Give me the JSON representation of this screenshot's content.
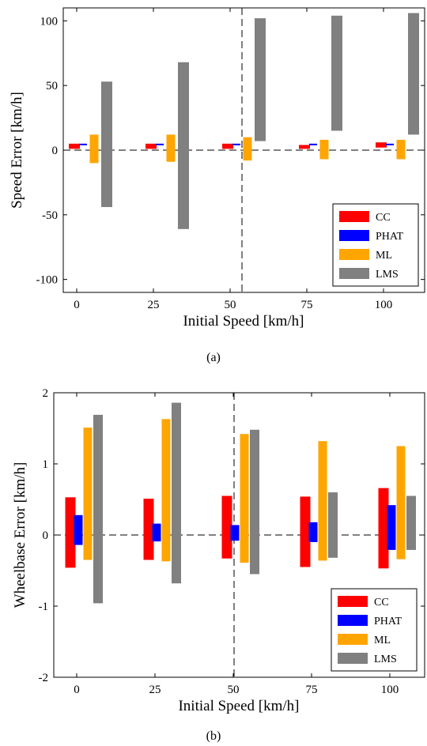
{
  "chart_data": [
    {
      "type": "bar",
      "subtype": "floating-range",
      "caption": "(a)",
      "xlabel": "Initial Speed [km/h]",
      "ylabel": "Speed Error [km/h]",
      "categories": [
        "0",
        "25",
        "50",
        "75",
        "100"
      ],
      "ylim": [
        -110,
        110
      ],
      "yticks": [
        "-100",
        "-50",
        "0",
        "50",
        "100"
      ],
      "grid": false,
      "legend_position": "bottom-right",
      "reference_lines": [
        "y = 0 (dashed)",
        "x = 50 (dashed)"
      ],
      "series": [
        {
          "name": "CC",
          "color": "#ff0000",
          "ranges": [
            [
              1,
              5
            ],
            [
              1,
              5
            ],
            [
              1,
              5
            ],
            [
              1,
              4
            ],
            [
              2,
              6
            ]
          ]
        },
        {
          "name": "PHAT",
          "color": "#0000ff",
          "ranges": [
            [
              4,
              5
            ],
            [
              4,
              5
            ],
            [
              4,
              5
            ],
            [
              4,
              5
            ],
            [
              4,
              5
            ]
          ]
        },
        {
          "name": "ML",
          "color": "#ffa500",
          "ranges": [
            [
              -10,
              12
            ],
            [
              -9,
              12
            ],
            [
              -8,
              10
            ],
            [
              -7,
              8
            ],
            [
              -7,
              8
            ]
          ]
        },
        {
          "name": "LMS",
          "color": "#808080",
          "ranges": [
            [
              -44,
              53
            ],
            [
              -61,
              68
            ],
            [
              7,
              102
            ],
            [
              15,
              104
            ],
            [
              12,
              106
            ]
          ]
        }
      ]
    },
    {
      "type": "bar",
      "subtype": "floating-range",
      "caption": "(b)",
      "xlabel": "Initial Speed [km/h]",
      "ylabel": "Wheelbase Error [km/h]",
      "categories": [
        "0",
        "25",
        "50",
        "75",
        "100"
      ],
      "ylim": [
        -2,
        2
      ],
      "yticks": [
        "-2",
        "-1",
        "0",
        "1",
        "2"
      ],
      "grid": false,
      "legend_position": "bottom-right",
      "reference_lines": [
        "y = 0 (dashed)",
        "x = 50 (dashed)"
      ],
      "series": [
        {
          "name": "CC",
          "color": "#ff0000",
          "ranges": [
            [
              -0.46,
              0.53
            ],
            [
              -0.35,
              0.51
            ],
            [
              -0.33,
              0.55
            ],
            [
              -0.45,
              0.54
            ],
            [
              -0.47,
              0.66
            ]
          ]
        },
        {
          "name": "PHAT",
          "color": "#0000ff",
          "ranges": [
            [
              -0.14,
              0.28
            ],
            [
              -0.09,
              0.16
            ],
            [
              -0.08,
              0.14
            ],
            [
              -0.1,
              0.18
            ],
            [
              -0.21,
              0.42
            ]
          ]
        },
        {
          "name": "ML",
          "color": "#ffa500",
          "ranges": [
            [
              -0.35,
              1.51
            ],
            [
              -0.37,
              1.63
            ],
            [
              -0.39,
              1.42
            ],
            [
              -0.36,
              1.32
            ],
            [
              -0.34,
              1.25
            ]
          ]
        },
        {
          "name": "LMS",
          "color": "#808080",
          "ranges": [
            [
              -0.96,
              1.69
            ],
            [
              -0.68,
              1.86
            ],
            [
              -0.55,
              1.48
            ],
            [
              -0.32,
              0.6
            ],
            [
              -0.21,
              0.55
            ]
          ]
        }
      ]
    }
  ]
}
